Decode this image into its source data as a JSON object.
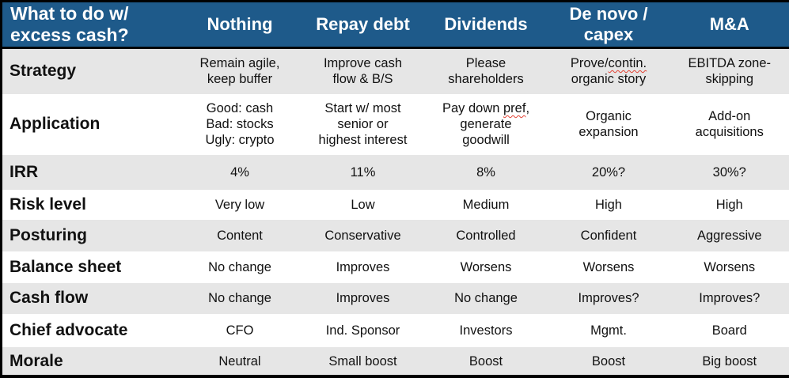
{
  "table": {
    "corner_header": "What to do w/\nexcess cash?",
    "columns": [
      "Nothing",
      "Repay debt",
      "Dividends",
      "De novo /\ncapex",
      "M&A"
    ],
    "rows": [
      {
        "label": "Strategy",
        "cells": [
          "Remain agile,\nkeep buffer",
          "Improve cash\nflow & B/S",
          "Please\nshareholders",
          "Prove/contin.\norganic story",
          "EBITDA zone-\nskipping"
        ]
      },
      {
        "label": "Application",
        "cells": [
          "Good: cash\nBad: stocks\nUgly: crypto",
          "Start w/ most\nsenior or\nhighest interest",
          "Pay down pref,\ngenerate\ngoodwill",
          "Organic\nexpansion",
          "Add-on\nacquisitions"
        ]
      },
      {
        "label": "IRR",
        "cells": [
          "4%",
          "11%",
          "8%",
          "20%?",
          "30%?"
        ]
      },
      {
        "label": "Risk level",
        "cells": [
          "Very low",
          "Low",
          "Medium",
          "High",
          "High"
        ]
      },
      {
        "label": "Posturing",
        "cells": [
          "Content",
          "Conservative",
          "Controlled",
          "Confident",
          "Aggressive"
        ]
      },
      {
        "label": "Balance sheet",
        "cells": [
          "No change",
          "Improves",
          "Worsens",
          "Worsens",
          "Worsens"
        ]
      },
      {
        "label": "Cash flow",
        "cells": [
          "No change",
          "Improves",
          "No change",
          "Improves?",
          "Improves?"
        ]
      },
      {
        "label": "Chief advocate",
        "cells": [
          "CFO",
          "Ind. Sponsor",
          "Investors",
          "Mgmt.",
          "Board"
        ]
      },
      {
        "label": "Morale",
        "cells": [
          "Neutral",
          "Small boost",
          "Boost",
          "Boost",
          "Big boost"
        ]
      }
    ]
  },
  "annotations": {
    "spellcheck": [
      {
        "row": 0,
        "col": 3,
        "word": "contin."
      },
      {
        "row": 1,
        "col": 2,
        "word": "pref"
      }
    ]
  },
  "colors": {
    "header_bg": "#1E5A8A",
    "header_text": "#FFFFFF",
    "band_bg": "#E6E6E6",
    "row_bg": "#FFFFFF",
    "border": "#000000",
    "text": "#111111",
    "squiggle_red": "#E34234"
  }
}
